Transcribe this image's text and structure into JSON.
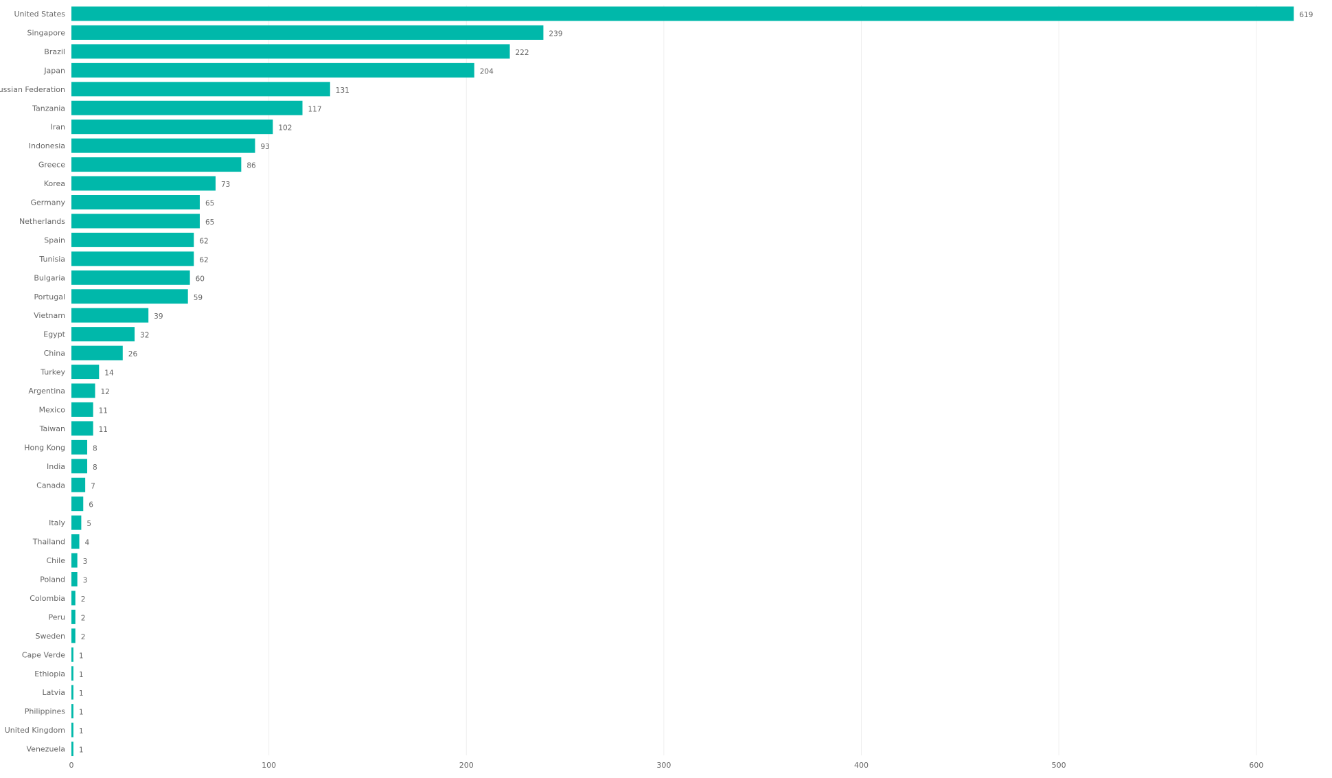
{
  "chart_data": {
    "type": "bar",
    "orientation": "horizontal",
    "title": "",
    "xlabel": "",
    "ylabel": "",
    "categories": [
      "United States",
      "Singapore",
      "Brazil",
      "Japan",
      "Russian Federation",
      "Tanzania",
      "Iran",
      "Indonesia",
      "Greece",
      "Korea",
      "Germany",
      "Netherlands",
      "Spain",
      "Tunisia",
      "Bulgaria",
      "Portugal",
      "Vietnam",
      "Egypt",
      "China",
      "Turkey",
      "Argentina",
      "Mexico",
      "Taiwan",
      "Hong Kong",
      "India",
      "Canada",
      "",
      "Italy",
      "Thailand",
      "Chile",
      "Poland",
      "Colombia",
      "Peru",
      "Sweden",
      "Cape Verde",
      "Ethiopia",
      "Latvia",
      "Philippines",
      "United Kingdom",
      "Venezuela"
    ],
    "values": [
      619,
      239,
      222,
      204,
      131,
      117,
      102,
      93,
      86,
      73,
      65,
      65,
      62,
      62,
      60,
      59,
      39,
      32,
      26,
      14,
      12,
      11,
      11,
      8,
      8,
      7,
      6,
      5,
      4,
      3,
      3,
      2,
      2,
      2,
      1,
      1,
      1,
      1,
      1,
      1
    ],
    "xlim": [
      0,
      630
    ],
    "xticks": [
      0,
      100,
      200,
      300,
      400,
      500,
      600
    ],
    "grid": true,
    "data_labels": true,
    "legend": "none",
    "bar_color": "#00B8AA",
    "grid_color": "#eeeeee",
    "label_color": "#666666"
  }
}
